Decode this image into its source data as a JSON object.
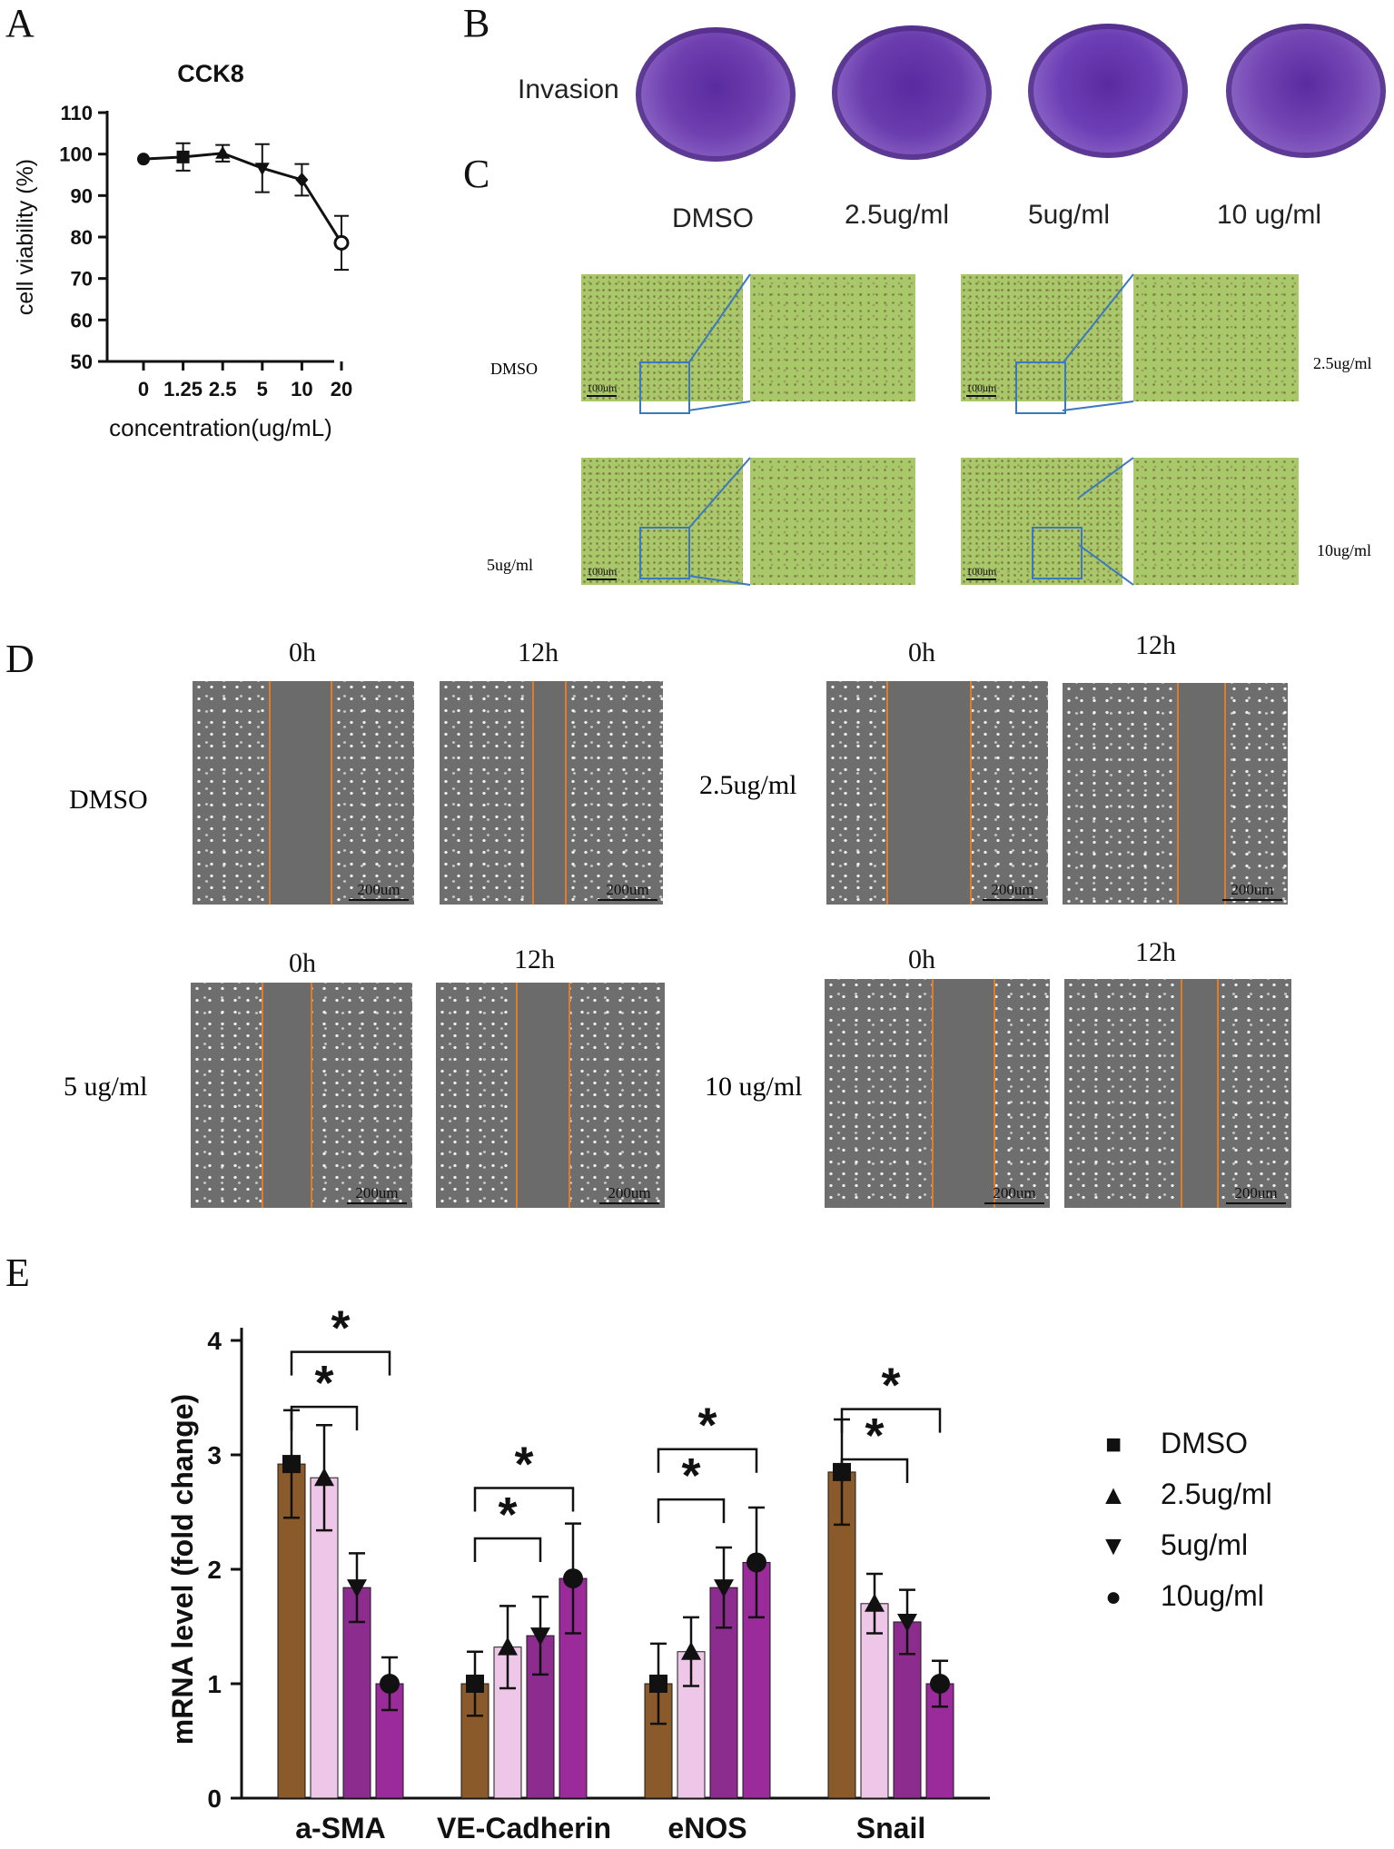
{
  "panels": {
    "a": "A",
    "b": "B",
    "c": "C",
    "d": "D",
    "e": "E"
  },
  "panel_b": {
    "row_label": "Invasion",
    "wells": [
      "DMSO",
      "2.5ug/ml",
      "5ug/ml",
      "10 ug/ml"
    ],
    "well_colors": [
      "#7040b0",
      "#6a3cae",
      "#6d3fb6",
      "#7446b4"
    ]
  },
  "panel_c": {
    "column_labels": [
      "DMSO",
      "2.5ug/ml",
      "5ug/ml",
      "10 ug/ml"
    ],
    "row_labels": {
      "dmso": "DMSO",
      "c25": "2.5ug/ml",
      "c5": "5ug/ml",
      "c10": "10ug/ml"
    },
    "scale_bar": "100um",
    "image_color": "#a9c86a"
  },
  "panel_d": {
    "time_labels": {
      "t0": "0h",
      "t12": "12h"
    },
    "row_labels": {
      "dmso": "DMSO",
      "c25": "2.5ug/ml",
      "c5": "5 ug/ml",
      "c10": "10 ug/ml"
    },
    "scale_bar": "200um",
    "line_color": "#e07b2a"
  },
  "chart_data": [
    {
      "id": "cck8",
      "type": "line",
      "title": "CCK8",
      "xlabel": "concentration(ug/mL)",
      "ylabel": "cell viability (%)",
      "categories": [
        "0",
        "1.25",
        "2.5",
        "5",
        "10",
        "20"
      ],
      "values": [
        98.8,
        99.3,
        100.2,
        96.6,
        93.8,
        78.6
      ],
      "errors": [
        0,
        3.3,
        2.0,
        5.8,
        3.8,
        6.5
      ],
      "markers": [
        "circle",
        "square",
        "triangle-up",
        "triangle-down",
        "diamond",
        "circle-open"
      ],
      "ylim": [
        50,
        110
      ],
      "yticks": [
        50,
        60,
        70,
        80,
        90,
        100,
        110
      ]
    },
    {
      "id": "mrna",
      "type": "bar",
      "ylabel": "mRNA level  (fold change)",
      "categories": [
        "a-SMA",
        "VE-Cadherin",
        "eNOS",
        "Snail"
      ],
      "ylim": [
        0,
        4
      ],
      "yticks": [
        0,
        1,
        2,
        3,
        4
      ],
      "series": [
        {
          "name": "DMSO",
          "marker": "■",
          "color": "#8a5a2a",
          "values": [
            2.92,
            1.0,
            1.0,
            2.85
          ],
          "errors": [
            0.47,
            0.28,
            0.35,
            0.46
          ]
        },
        {
          "name": "2.5ug/ml",
          "marker": "▲",
          "color": "#eec7e8",
          "values": [
            2.8,
            1.32,
            1.28,
            1.7
          ],
          "errors": [
            0.46,
            0.36,
            0.3,
            0.26
          ]
        },
        {
          "name": "5ug/ml",
          "marker": "▼",
          "color": "#8c2c8e",
          "values": [
            1.84,
            1.42,
            1.84,
            1.54
          ],
          "errors": [
            0.3,
            0.34,
            0.35,
            0.28
          ]
        },
        {
          "name": "10ug/ml",
          "marker": "●",
          "color": "#9b2a9b",
          "values": [
            1.0,
            1.92,
            2.06,
            1.0
          ],
          "errors": [
            0.23,
            0.48,
            0.48,
            0.2
          ]
        }
      ],
      "significance_mark": "*"
    }
  ]
}
